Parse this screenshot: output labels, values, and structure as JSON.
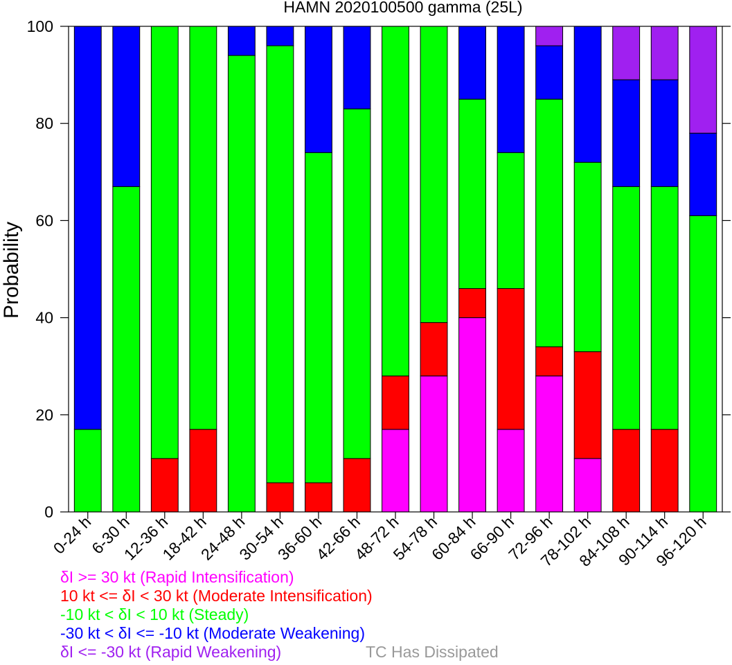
{
  "chart_data": {
    "type": "bar",
    "stacked": true,
    "title": "HAMN 2020100500 gamma (25L)",
    "xlabel": "",
    "ylabel": "Probability",
    "ylim": [
      0,
      100
    ],
    "yticks": [
      0,
      20,
      40,
      60,
      80,
      100
    ],
    "grid": false,
    "categories": [
      "0-24 h",
      "6-30 h",
      "12-36 h",
      "18-42 h",
      "24-48 h",
      "30-54 h",
      "36-60 h",
      "42-66 h",
      "48-72 h",
      "54-78 h",
      "60-84 h",
      "66-90 h",
      "72-96 h",
      "78-102 h",
      "84-108 h",
      "90-114 h",
      "96-120 h"
    ],
    "series": [
      {
        "key": "ri",
        "color": "#ff00ff",
        "values": [
          0,
          0,
          0,
          0,
          0,
          0,
          0,
          0,
          17,
          28,
          40,
          17,
          28,
          11,
          0,
          0,
          0
        ]
      },
      {
        "key": "mi",
        "color": "#ff0000",
        "values": [
          0,
          0,
          11,
          17,
          0,
          6,
          6,
          11,
          11,
          11,
          6,
          29,
          6,
          22,
          17,
          17,
          0
        ]
      },
      {
        "key": "steady",
        "color": "#00ff00",
        "values": [
          17,
          67,
          89,
          83,
          94,
          90,
          68,
          72,
          72,
          61,
          39,
          28,
          51,
          39,
          50,
          50,
          61
        ]
      },
      {
        "key": "mw",
        "color": "#0000ff",
        "values": [
          83,
          33,
          0,
          0,
          6,
          4,
          26,
          17,
          0,
          0,
          15,
          26,
          11,
          28,
          22,
          22,
          17
        ]
      },
      {
        "key": "rw",
        "color": "#a020f0",
        "values": [
          0,
          0,
          0,
          0,
          0,
          0,
          0,
          0,
          0,
          0,
          0,
          0,
          4,
          0,
          11,
          11,
          22
        ]
      }
    ]
  },
  "legend": {
    "ri": {
      "label": "δI >= 30 kt (Rapid Intensification)",
      "color": "#ff00ff"
    },
    "mi": {
      "label": "10 kt <= δI < 30 kt (Moderate Intensification)",
      "color": "#ff0000"
    },
    "steady": {
      "label": "-10 kt < δI < 10 kt (Steady)",
      "color": "#00ff00"
    },
    "mw": {
      "label": "-30 kt < δI <= -10 kt (Moderate Weakening)",
      "color": "#0000ff"
    },
    "rw": {
      "label": "δI <= -30 kt (Rapid Weakening)",
      "color": "#a020f0"
    },
    "dissipated": {
      "label": "TC Has Dissipated",
      "color": "#999999"
    }
  }
}
